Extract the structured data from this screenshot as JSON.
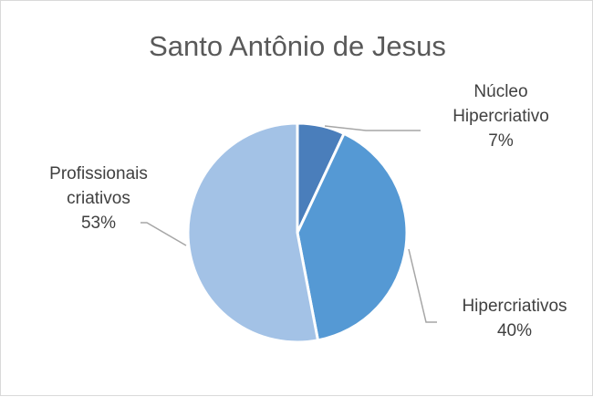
{
  "chart_data": {
    "type": "pie",
    "title": "Santo Antônio de Jesus",
    "slices": [
      {
        "label_lines": [
          "Núcleo",
          "Hipercriativo"
        ],
        "value": 7,
        "value_label": "7%",
        "color": "#4a7ebb"
      },
      {
        "label_lines": [
          "Hipercriativos"
        ],
        "value": 40,
        "value_label": "40%",
        "color": "#5599d4"
      },
      {
        "label_lines": [
          "Profissionais",
          "criativos"
        ],
        "value": 53,
        "value_label": "53%",
        "color": "#a3c2e6"
      }
    ],
    "legend": "none",
    "data_labels": "category-and-percentage-outside-with-leader-lines"
  }
}
